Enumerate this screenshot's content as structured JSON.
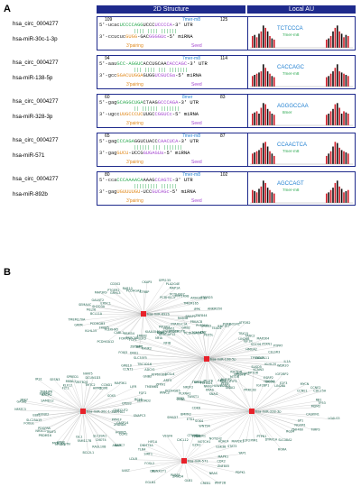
{
  "panel_a": {
    "letter": "A",
    "header_2d": "2D Structure",
    "header_au": "Local AU",
    "rows": [
      {
        "circ": "hsa_circ_0004277",
        "mir": "hsa-miR-30c-1-3p",
        "pos_left": "109",
        "pos_right": "125",
        "site": "7mer-m8",
        "seq_top_a": "5'-ucac",
        "seq_top_b": "UCCCCAGG",
        "seq_top_c": "UCCC",
        "seq_top_d": "UCCCCA",
        "seq_top_e": "-3' UTR",
        "bars": "|||| ||||   ||||||",
        "seq_bot_a": "3'-ccucuc",
        "seq_bot_b": "GUGG",
        "seq_bot_c": "-GAC",
        "seq_bot_d": "GGGGUc",
        "seq_bot_e": "-5' miRNA",
        "pairing": "3'pairing",
        "seed": "Seed",
        "au_word": "TCTCCCA",
        "au_sub": "7mer-m8",
        "au_bars": [
          0.5,
          0.55,
          0.45,
          0.6,
          0.7,
          0.95,
          0.85,
          0.7,
          0.5,
          0.4,
          0.35
        ]
      },
      {
        "circ": "hsa_circ_0004277",
        "mir": "hsa-miR-138-5p",
        "pos_left": "94",
        "pos_right": "114",
        "site": "7mer-m8",
        "seq_top_a": "5'-aau",
        "seq_top_b": "GCC-AGGUC",
        "seq_top_c": "ACCUGCAA",
        "seq_top_d": "CACCAGC",
        "seq_top_e": "-3' UTR",
        "bars": "|||  ||||  |||  |||||||",
        "seq_bot_a": "3'-gcc",
        "seq_bot_b": "GGACUUGGA",
        "seq_bot_c": "GUGG",
        "seq_bot_d": "UCGUCGa",
        "seq_bot_e": "-5' miRNA",
        "pairing": "3'pairing",
        "seed": "Seed",
        "au_word": "CACCAGC",
        "au_sub": "7mer-m8",
        "au_bars": [
          0.45,
          0.5,
          0.55,
          0.6,
          0.65,
          0.95,
          0.8,
          0.65,
          0.55,
          0.45,
          0.4
        ]
      },
      {
        "circ": "hsa_circ_0004277",
        "mir": "hsa-miR-328-3p",
        "pos_left": "60",
        "pos_right": "83",
        "site": "8mer",
        "seq_top_a": "5'-gag",
        "seq_top_b": "GCAGGCUGA",
        "seq_top_c": "CTAAG",
        "seq_top_d": "GCCCAGA",
        "seq_top_e": "-3' UTR",
        "bars": "|| ||||||    |||||||",
        "seq_bot_a": "3'-ugcc",
        "seq_bot_b": "UUGCCCUC",
        "seq_bot_c": "UUGC",
        "seq_bot_d": "CGGUCc",
        "seq_bot_e": "-5' miRNA",
        "pairing": "3'pairing",
        "seed": "Seed",
        "au_word": "AGGGCCAA",
        "au_sub": "8mer",
        "au_bars": [
          0.5,
          0.55,
          0.6,
          0.5,
          0.75,
          0.95,
          0.9,
          0.7,
          0.6,
          0.5,
          0.45
        ]
      },
      {
        "circ": "hsa_circ_0004277",
        "mir": "hsa-miR-571",
        "pos_left": "65",
        "pos_right": "87",
        "site": "7mer-m8",
        "seq_top_a": "5'-gag",
        "seq_top_b": "CCCAGA",
        "seq_top_c": "GGUCUACC",
        "seq_top_d": "CAACUCA",
        "seq_top_e": "-3' UTR",
        "bars": "||||||   |||   |||||||",
        "seq_bot_a": "3'-gag",
        "seq_bot_b": "GUCU",
        "seq_bot_c": "-UCCG",
        "seq_bot_d": "GUGAGUa",
        "seq_bot_e": "-5' miRNA",
        "pairing": "3'pairing",
        "seed": "Seed",
        "au_word": "CCAACTCA",
        "au_sub": "7mer-m8",
        "au_bars": [
          0.45,
          0.5,
          0.55,
          0.6,
          0.7,
          0.9,
          0.95,
          0.75,
          0.55,
          0.45,
          0.35
        ]
      },
      {
        "circ": "hsa_circ_0004277",
        "mir": "hsa-miR-892b",
        "pos_left": "80",
        "pos_right": "102",
        "site": "7mer-m8",
        "seq_top_a": "5'-cca",
        "seq_top_b": "CCCAAAACA",
        "seq_top_c": "AAAG",
        "seq_top_d": "CCAGTC",
        "seq_top_e": "-3' UTR",
        "bars": "|||||||||   ||||||",
        "seq_bot_a": "3'-gag",
        "seq_bot_b": "UGUUUUGU",
        "seq_bot_c": "-UCC",
        "seq_bot_d": "GUCAGc",
        "seq_bot_e": "-5' miRNA",
        "pairing": "3'pairing",
        "seed": "Seed",
        "au_word": "AGCCAGT",
        "au_sub": "7mer-m8",
        "au_bars": [
          0.55,
          0.5,
          0.45,
          0.6,
          0.7,
          0.95,
          0.85,
          0.65,
          0.55,
          0.45,
          0.4
        ]
      }
    ]
  },
  "panel_b": {
    "letter": "B",
    "hubs": [
      "hsa-miR-892b",
      "hsa-miR-138-5p",
      "hsa-miR-30c-1-3p",
      "hsa-miR-328-3p",
      "hsa-miR-571"
    ],
    "hub_color": "#e8212a",
    "edge_color": "#aaaaaa",
    "node_color": "#1b5e4a",
    "genes_hub1": [
      "ZNF844",
      "SMAP1",
      "PRKACB",
      "CREB3",
      "GRB2",
      "PCDHGA10",
      "HUWE1",
      "ITPRIPL2",
      "IL6R",
      "NFIA",
      "KIAA1549",
      "SBF1",
      "ELK3",
      "RBM34",
      "FOXP1",
      "CABL1",
      "PCDHGA12",
      "PLEKHA5",
      "FKBP5",
      "KLHL15",
      "PCDHGB3",
      "GRPR",
      "TMEM170A",
      "BCL11A",
      "MLLT6",
      "SEMA4C",
      "SH2D3A",
      "EXOC1",
      "GALNT2",
      "MAP3K9",
      "GRHL3",
      "PTGER2",
      "CD302",
      "RAB10",
      "PCDHGA3",
      "STRBP",
      "CKAP5",
      "GPR135",
      "PLA2G4E",
      "MAP1A",
      "PCDHGC3",
      "PCDHGB7",
      "PPP1R9B",
      "ARHGEF12",
      "STARD3",
      "TMEM165",
      "IPPK",
      "ANKRD50"
    ],
    "genes_hub2": [
      "IL1A",
      "KLHL20",
      "WDR20",
      "KCNN3",
      "SUSD5",
      "ESRP2",
      "GFRA2",
      "CDC34",
      "MEIS3P1",
      "VPS37B",
      "PRRC2B",
      "RAB11FIP3",
      "NUFIP2",
      "GNAI2",
      "FOXO1",
      "HUWE1",
      "FCHSD1",
      "MLLT6",
      "SRRM4",
      "TRPS1",
      "NR2F2",
      "PLXNA1",
      "PCDHGB5",
      "WWC2",
      "ZFP91",
      "ARF3",
      "TMEM64",
      "ACSL4",
      "ATP6V1B2",
      "GNB2",
      "ADCY1",
      "CCNT1",
      "TBC1D16",
      "GRB10",
      "SLC35F5",
      "DKK1",
      "FOXJ3",
      "KANK2",
      "ZBTB47",
      "FGF1",
      "TNRC6B",
      "ERBB2",
      "NFIB",
      "SOX12",
      "ARHGAP12",
      "PIK3R3",
      "STK38",
      "PPARGC1A",
      "CHST8",
      "RAB3B",
      "TOMM20",
      "EN2",
      "PHF21A",
      "PEX5L",
      "RNF157",
      "TEAD1",
      "PURB",
      "GOSR1",
      "ATP2B2",
      "TBX15",
      "LIN28B",
      "TANC2",
      "MAP2K4",
      "IGF1R",
      "SOCS6",
      "ATXN1",
      "HMGA2",
      "PTPRT",
      "CELSR3",
      "TP53INP1",
      "BCL2L11"
    ],
    "genes_hub3": [
      "EPHA1",
      "SNAPC3",
      "PPM1F",
      "CASP14",
      "ZFAND6",
      "HOXB5",
      "CCM2",
      "ANAPC7",
      "SIX3",
      "CNOT4",
      "SLC39A1",
      "RASL10B",
      "BCL2L1",
      "FAM117B",
      "ISL1",
      "MSTN",
      "MYBL1",
      "BRAF",
      "MYB",
      "PRDM16",
      "TRAF3",
      "NR3C1",
      "PDGFRA",
      "FOXG1",
      "SLC25A15",
      "EBF1",
      "RUNX2",
      "NFATC3",
      "GATA6",
      "PAK7",
      "SAMD12",
      "ESRRG",
      "BACH2",
      "TNFAIP8",
      "IRS1",
      "SESN3",
      "FLT1",
      "KLF12",
      "MBNL2",
      "SPRED1",
      "ZBTB20",
      "NFAT5",
      "TMTC2",
      "DCUN1D3",
      "HIPK1",
      "DDX6",
      "CCND1",
      "MAP3K1",
      "LIFR",
      "SOX5",
      "FGF2",
      "BCL6",
      "SERTAD2",
      "CPEB2",
      "ONECUT2"
    ],
    "genes_hub4": [
      "CASKIN1",
      "LGALS3",
      "SP1",
      "TIMP3",
      "NCAM1",
      "ZNF460",
      "RGS4",
      "SLC38A2",
      "RORA",
      "DYRK1A",
      "PTPN1",
      "PIM1",
      "E2F2",
      "MAP2K1",
      "GSK3B",
      "NOTCH2",
      "TGFBR1",
      "FZD8",
      "WNT5A",
      "SOX4",
      "ETS1",
      "SMAD7",
      "BMPR2",
      "CDK6",
      "ZEB1",
      "ZEB2",
      "TWIST1",
      "SNAI1",
      "KRAS",
      "NRAS",
      "PTEN",
      "AKT3",
      "MTOR",
      "RICTOR",
      "RPTOR",
      "IGF2BP1",
      "IGF2BP2",
      "LIN28A",
      "E2F3",
      "MYCN",
      "CCNE1",
      "CCNE2",
      "CDC25A",
      "RB1",
      "TP53",
      "MDM2"
    ],
    "genes_hub5": [
      "CDK2",
      "ZNF805",
      "PDPK1",
      "NRAS",
      "WNT2B",
      "CREB1",
      "GLB1",
      "SMAD4",
      "PARP1",
      "EGLN1",
      "RUNX1T1",
      "CBL",
      "IL6ST",
      "FOSL2",
      "LDLR",
      "SIRT1",
      "TLR4",
      "DNMT3A",
      "HIF1A",
      "VEGFA",
      "CXCL12",
      "CTNNB1",
      "EZH2",
      "NOTCH1",
      "HDAC4",
      "STAT3",
      "YAP1",
      "MAPK1"
    ]
  }
}
